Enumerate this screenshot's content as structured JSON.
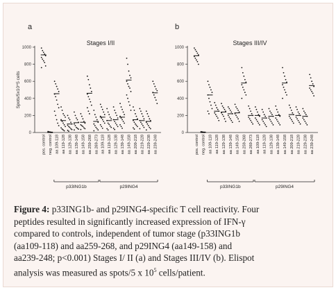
{
  "chart_data": [
    {
      "type": "scatter",
      "panel_label": "a",
      "title": "Stages I/II",
      "ylabel": "Spots/5x10^5 cells",
      "ylim": [
        0,
        1000
      ],
      "yticks": [
        0,
        200,
        400,
        600,
        800,
        1000
      ],
      "categories": [
        "pos. control",
        "neg. control",
        "aa 109-118",
        "aa 119-128",
        "aa 129-138",
        "aa 139-148",
        "aa 149-158",
        "aa 259-268",
        "aa 269-273",
        "aa 109-118",
        "aa 119-128",
        "aa 129-138",
        "aa 139-148",
        "aa 149-158",
        "aa 209-218",
        "aa 219-228",
        "aa 229-238",
        "aa 239-248"
      ],
      "groups": [
        {
          "label": "p33ING1b",
          "from": 2,
          "to": 8
        },
        {
          "label": "p29ING4",
          "from": 9,
          "to": 17
        }
      ],
      "points": [
        [
          990,
          960,
          940,
          920,
          900,
          880,
          860,
          840,
          820,
          780,
          760
        ],
        [
          12,
          8,
          6,
          4,
          3,
          2,
          2,
          1,
          0,
          0
        ],
        [
          600,
          570,
          540,
          510,
          480,
          450,
          420,
          380,
          330,
          290,
          250,
          200,
          150,
          110,
          80
        ],
        [
          300,
          260,
          220,
          200,
          180,
          150,
          130,
          110,
          90,
          70,
          55,
          40,
          30,
          20
        ],
        [
          200,
          170,
          150,
          120,
          100,
          85,
          70,
          60,
          45,
          35,
          25,
          15
        ],
        [
          240,
          200,
          170,
          150,
          120,
          100,
          80,
          60,
          50,
          40,
          30
        ],
        [
          220,
          190,
          160,
          130,
          110,
          90,
          80,
          70,
          55,
          45,
          35
        ],
        [
          660,
          620,
          560,
          520,
          480,
          450,
          420,
          390,
          360,
          320,
          290,
          250,
          220
        ],
        [
          260,
          210,
          180,
          150,
          120,
          100,
          80,
          60,
          45,
          30,
          20
        ],
        [
          330,
          300,
          270,
          240,
          210,
          190,
          170,
          150,
          130,
          110,
          90,
          70,
          50
        ],
        [
          280,
          240,
          210,
          180,
          160,
          140,
          110,
          95,
          75,
          60,
          45,
          30
        ],
        [
          300,
          260,
          230,
          200,
          170,
          150,
          130,
          110,
          90,
          70,
          50,
          35
        ],
        [
          340,
          300,
          270,
          240,
          210,
          190,
          170,
          150,
          130,
          110,
          90,
          70,
          50
        ],
        [
          870,
          800,
          720,
          670,
          640,
          600,
          570,
          540,
          520,
          480,
          440,
          400,
          360,
          320,
          260
        ],
        [
          300,
          260,
          220,
          190,
          160,
          140,
          120,
          100,
          85,
          70,
          55,
          40
        ],
        [
          280,
          250,
          220,
          190,
          160,
          140,
          120,
          100,
          80,
          60,
          45
        ],
        [
          250,
          220,
          190,
          160,
          140,
          120,
          100,
          80,
          60,
          45,
          30
        ],
        [
          600,
          570,
          540,
          510,
          490,
          470,
          440,
          410,
          380,
          340
        ]
      ],
      "means": [
        910,
        4,
        455,
        140,
        100,
        115,
        120,
        460,
        130,
        180,
        140,
        150,
        180,
        615,
        150,
        140,
        130,
        465
      ]
    },
    {
      "type": "scatter",
      "panel_label": "b",
      "title": "Stages III/IV",
      "ylabel": "",
      "ylim": [
        0,
        1000
      ],
      "yticks": [
        0,
        200,
        400,
        600,
        800,
        1000
      ],
      "categories": [
        "pos. control",
        "neg. control",
        "aa 109-118",
        "aa 119-128",
        "aa 129-138",
        "aa 139-148",
        "aa 149-158",
        "aa 259-268",
        "aa 269-273",
        "aa 109-118",
        "aa 119-128",
        "aa 129-138",
        "aa 139-148",
        "aa 149-158",
        "aa 209-218",
        "aa 219-228",
        "aa 229-238",
        "aa 239-248"
      ],
      "groups": [
        {
          "label": "p33ING1b",
          "from": 2,
          "to": 8
        },
        {
          "label": "p29ING4",
          "from": 9,
          "to": 17
        }
      ],
      "points": [
        [
          990,
          970,
          950,
          930,
          910,
          890,
          870,
          850,
          830,
          800
        ],
        [
          10,
          7,
          5,
          4,
          3,
          2,
          1,
          1,
          0
        ],
        [
          600,
          560,
          530,
          500,
          470,
          440,
          400,
          360,
          320,
          280,
          250,
          220
        ],
        [
          350,
          320,
          290,
          270,
          250,
          230,
          210,
          190,
          170,
          140
        ],
        [
          340,
          310,
          290,
          270,
          250,
          230,
          210,
          190,
          160,
          130
        ],
        [
          300,
          280,
          260,
          240,
          220,
          200,
          180,
          160,
          140,
          120
        ],
        [
          330,
          300,
          280,
          260,
          240,
          220,
          200,
          180,
          160,
          130
        ],
        [
          760,
          700,
          660,
          620,
          590,
          560,
          530,
          500,
          470,
          440,
          400
        ],
        [
          310,
          280,
          250,
          220,
          200,
          180,
          160,
          140,
          120,
          100
        ],
        [
          300,
          270,
          240,
          210,
          190,
          170,
          150,
          130,
          110,
          90
        ],
        [
          270,
          240,
          210,
          190,
          170,
          150,
          130,
          110,
          90,
          70
        ],
        [
          280,
          250,
          230,
          210,
          190,
          170,
          150,
          130,
          110,
          90
        ],
        [
          310,
          270,
          240,
          210,
          190,
          170,
          150,
          130,
          110,
          90
        ],
        [
          760,
          700,
          660,
          620,
          590,
          560,
          530,
          500,
          470,
          440,
          400
        ],
        [
          320,
          290,
          260,
          230,
          210,
          190,
          170,
          150,
          130,
          110
        ],
        [
          300,
          270,
          240,
          220,
          200,
          180,
          160,
          140,
          120,
          100
        ],
        [
          280,
          250,
          230,
          210,
          190,
          170,
          150,
          130,
          110,
          90
        ],
        [
          680,
          640,
          600,
          570,
          540,
          520,
          500,
          480,
          460,
          430
        ]
      ],
      "means": [
        900,
        3,
        440,
        250,
        240,
        220,
        230,
        580,
        200,
        200,
        170,
        190,
        200,
        580,
        210,
        200,
        190,
        550
      ]
    }
  ],
  "caption": {
    "figure_label": "Figure 4:",
    "line1_rest": " p33ING1b- and p29ING4-specific T cell reactivity. Four",
    "line2": "peptides resulted in significantly increased expression of IFN-γ",
    "line3": "compared to controls, independent of tumor stage (p33ING1b",
    "line4": "(aa109-118) and aa259-268, and p29ING4 (aa149-158) and",
    "line5": "aa239-248; p<0.001) Stages I/ II (a) and Stages III/IV (b). Elispot",
    "line6a": "analysis was measured as spots/5 x 10",
    "line6sup": "5",
    "line6b": " cells/patient."
  }
}
